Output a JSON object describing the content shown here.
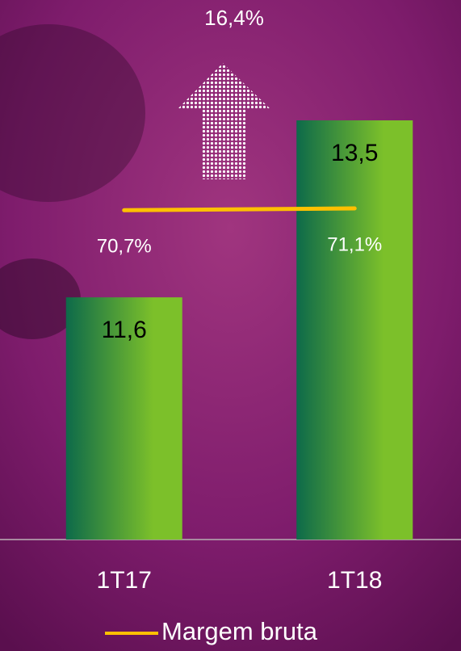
{
  "chart_data": {
    "type": "bar",
    "annotation": "16,4%",
    "categories": [
      "1T17",
      "1T18"
    ],
    "series": [
      {
        "values": [
          11.6,
          13.5
        ],
        "value_labels": [
          "11,6",
          "13,5"
        ],
        "color": "#7cc02a"
      },
      {
        "name": "Margem bruta",
        "type": "line",
        "axis": "y2",
        "color": "#ffc000",
        "values": [
          70.7,
          71.1
        ],
        "value_labels": [
          "70,7%",
          "71,1%"
        ]
      }
    ],
    "ylim": [
      9,
      13.5
    ],
    "y2lim": [
      0,
      90
    ]
  }
}
